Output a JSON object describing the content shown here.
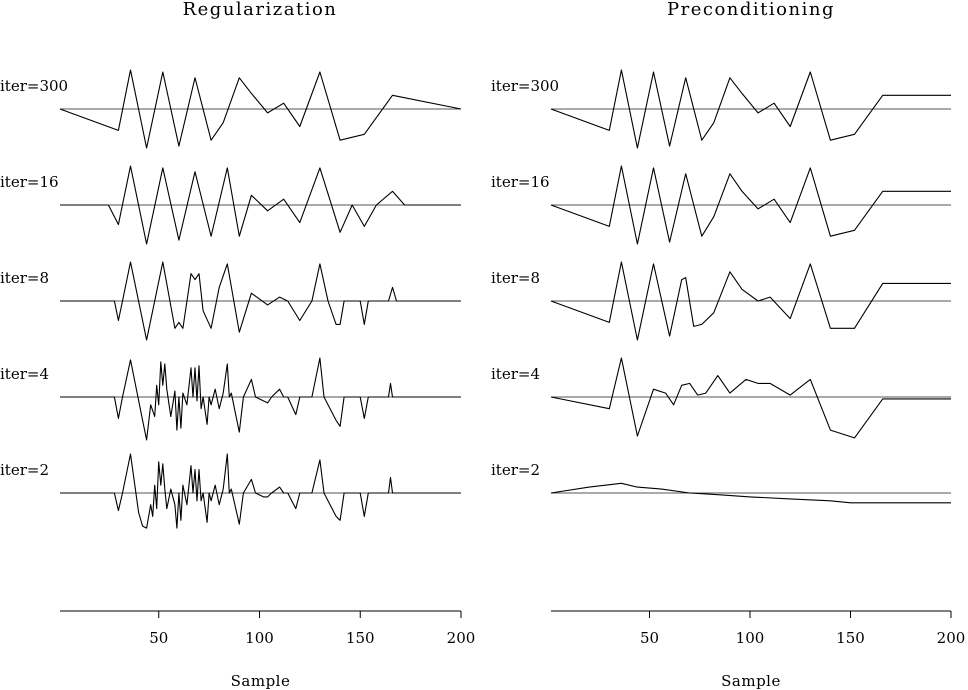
{
  "chart_data": [
    {
      "type": "line",
      "title": "Regularization",
      "xlabel": "Sample",
      "xlim": [
        1,
        200
      ],
      "xticks": [
        50,
        100,
        150,
        200
      ],
      "grid": false,
      "series": [
        {
          "name": "iter=300",
          "x": [
            1,
            30,
            36,
            44,
            52,
            60,
            68,
            76,
            82,
            90,
            96,
            104,
            112,
            120,
            130,
            140,
            152,
            166,
            200
          ],
          "y": [
            0,
            -0.55,
            1.0,
            -1.0,
            0.95,
            -0.95,
            0.8,
            -0.8,
            -0.35,
            0.8,
            0.4,
            -0.1,
            0.15,
            -0.45,
            0.95,
            -0.8,
            -0.65,
            0.35,
            0
          ]
        },
        {
          "name": "iter=16",
          "x": [
            1,
            25,
            30,
            36,
            44,
            52,
            60,
            68,
            76,
            84,
            90,
            96,
            104,
            112,
            120,
            130,
            140,
            146,
            152,
            158,
            166,
            172,
            200
          ],
          "y": [
            0,
            0,
            -0.5,
            1.0,
            -1.0,
            0.95,
            -0.9,
            0.85,
            -0.8,
            0.95,
            -0.8,
            0.25,
            -0.15,
            0.15,
            -0.45,
            0.95,
            -0.7,
            0,
            -0.55,
            0,
            0.35,
            0,
            0
          ]
        },
        {
          "name": "iter=8",
          "x": [
            1,
            28,
            30,
            32,
            36,
            44,
            52,
            58,
            60,
            62,
            66,
            68,
            70,
            72,
            76,
            80,
            84,
            90,
            96,
            100,
            104,
            110,
            114,
            120,
            126,
            130,
            134,
            138,
            140,
            142,
            150,
            152,
            154,
            164,
            166,
            168,
            200
          ],
          "y": [
            0,
            0,
            -0.5,
            0,
            1.0,
            -1.0,
            1.0,
            -0.7,
            -0.55,
            -0.7,
            0.7,
            0.55,
            0.7,
            -0.25,
            -0.7,
            0.35,
            0.95,
            -0.8,
            0.2,
            0.05,
            -0.1,
            0.1,
            0,
            -0.5,
            0,
            0.95,
            0,
            -0.6,
            -0.6,
            0,
            0,
            -0.6,
            0,
            0,
            0.35,
            0,
            0
          ]
        },
        {
          "name": "iter=4",
          "x": [
            1,
            28,
            30,
            32,
            36,
            42,
            44,
            46,
            48,
            49,
            50,
            51,
            52,
            53,
            54,
            56,
            58,
            59,
            60,
            61,
            62,
            64,
            66,
            67,
            68,
            69,
            70,
            71,
            72,
            74,
            75,
            76,
            78,
            80,
            82,
            84,
            85,
            86,
            90,
            92,
            96,
            98,
            102,
            104,
            106,
            110,
            112,
            114,
            118,
            120,
            122,
            126,
            130,
            132,
            138,
            140,
            142,
            150,
            152,
            154,
            164,
            165,
            166,
            167,
            200
          ],
          "y": [
            0,
            0,
            -0.55,
            0,
            0.95,
            -0.6,
            -1.1,
            -0.2,
            -0.5,
            0.3,
            -0.2,
            0.9,
            0.3,
            0.85,
            0.2,
            -0.5,
            0.15,
            -0.85,
            0,
            -0.8,
            0.1,
            -0.2,
            0.75,
            0,
            0.75,
            -0.1,
            0.8,
            -0.3,
            0,
            -0.7,
            0,
            -0.2,
            0.2,
            -0.3,
            0.1,
            0.85,
            0,
            0.1,
            -0.9,
            0,
            0.45,
            0,
            -0.1,
            -0.15,
            0,
            0.2,
            0,
            0,
            -0.45,
            0,
            0,
            0,
            1.0,
            0,
            -0.6,
            -0.75,
            0,
            0,
            -0.55,
            0,
            0,
            0.35,
            0,
            0,
            0
          ]
        },
        {
          "name": "iter=2",
          "x": [
            1,
            28,
            30,
            32,
            36,
            40,
            42,
            44,
            46,
            47,
            48,
            49,
            50,
            51,
            52,
            53,
            54,
            56,
            58,
            59,
            60,
            61,
            62,
            64,
            66,
            67,
            68,
            69,
            70,
            71,
            72,
            74,
            75,
            76,
            78,
            80,
            82,
            84,
            85,
            86,
            90,
            92,
            96,
            98,
            102,
            104,
            106,
            110,
            112,
            114,
            118,
            120,
            122,
            126,
            130,
            132,
            138,
            140,
            142,
            150,
            152,
            154,
            164,
            165,
            166,
            167,
            200
          ],
          "y": [
            0,
            0,
            -0.45,
            0,
            1.0,
            -0.5,
            -0.85,
            -0.9,
            -0.3,
            -0.6,
            0.2,
            -0.4,
            0.8,
            0.2,
            0.75,
            0.1,
            -0.4,
            0.1,
            -0.3,
            -0.9,
            0,
            -0.7,
            0.2,
            -0.3,
            0.7,
            0,
            0.6,
            -0.2,
            0.6,
            -0.2,
            0,
            -0.75,
            0,
            -0.2,
            0.2,
            -0.3,
            0.1,
            1.0,
            0,
            0.1,
            -0.8,
            0,
            0.35,
            0,
            -0.1,
            -0.1,
            0,
            0.15,
            0,
            0,
            -0.4,
            0,
            0,
            0,
            0.85,
            0,
            -0.6,
            -0.7,
            0,
            0,
            -0.6,
            0,
            0,
            0.4,
            0,
            0,
            0
          ]
        }
      ]
    },
    {
      "type": "line",
      "title": "Preconditioning",
      "xlabel": "Sample",
      "xlim": [
        1,
        200
      ],
      "xticks": [
        50,
        100,
        150,
        200
      ],
      "grid": false,
      "series": [
        {
          "name": "iter=300",
          "x": [
            1,
            30,
            36,
            44,
            52,
            60,
            68,
            76,
            82,
            90,
            96,
            104,
            112,
            120,
            130,
            140,
            152,
            166,
            200
          ],
          "y": [
            0,
            -0.55,
            1.0,
            -1.0,
            0.95,
            -0.95,
            0.8,
            -0.8,
            -0.35,
            0.8,
            0.4,
            -0.1,
            0.15,
            -0.45,
            0.95,
            -0.8,
            -0.65,
            0.35,
            0.35
          ]
        },
        {
          "name": "iter=16",
          "x": [
            1,
            30,
            36,
            44,
            52,
            60,
            68,
            76,
            82,
            90,
            96,
            104,
            112,
            120,
            130,
            140,
            152,
            166,
            200
          ],
          "y": [
            0,
            -0.55,
            1.0,
            -1.0,
            0.95,
            -0.95,
            0.8,
            -0.8,
            -0.3,
            0.8,
            0.35,
            -0.1,
            0.15,
            -0.45,
            0.95,
            -0.8,
            -0.65,
            0.35,
            0.35
          ]
        },
        {
          "name": "iter=8",
          "x": [
            1,
            30,
            36,
            44,
            52,
            60,
            66,
            68,
            72,
            76,
            82,
            90,
            96,
            104,
            110,
            120,
            130,
            140,
            152,
            166,
            200
          ],
          "y": [
            0,
            -0.55,
            1.0,
            -1.0,
            0.95,
            -0.9,
            0.55,
            0.6,
            -0.65,
            -0.6,
            -0.3,
            0.75,
            0.3,
            0,
            0.1,
            -0.45,
            0.95,
            -0.7,
            -0.7,
            0.45,
            0.45
          ]
        },
        {
          "name": "iter=4",
          "x": [
            1,
            30,
            36,
            44,
            52,
            58,
            62,
            66,
            70,
            74,
            78,
            84,
            90,
            98,
            104,
            110,
            120,
            130,
            140,
            152,
            166,
            200
          ],
          "y": [
            0,
            -0.3,
            1.0,
            -1.0,
            0.2,
            0.1,
            -0.2,
            0.3,
            0.35,
            0.05,
            0.1,
            0.55,
            0.1,
            0.45,
            0.35,
            0.35,
            0.05,
            0.45,
            -0.85,
            -1.05,
            -0.05,
            -0.05
          ]
        },
        {
          "name": "iter=2",
          "x": [
            1,
            20,
            36,
            44,
            56,
            70,
            86,
            100,
            120,
            140,
            150,
            164,
            200
          ],
          "y": [
            0,
            0.15,
            0.25,
            0.15,
            0.1,
            0,
            -0.05,
            -0.1,
            -0.15,
            -0.2,
            -0.25,
            -0.25,
            -0.25
          ]
        }
      ]
    }
  ]
}
